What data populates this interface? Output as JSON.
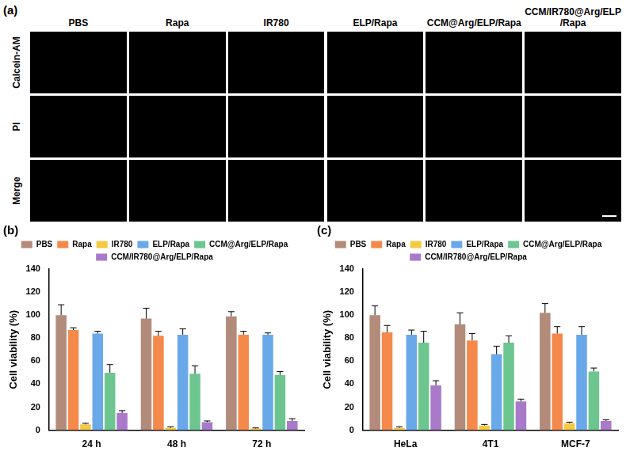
{
  "image_panel": {
    "label": "(a)",
    "columns": [
      "PBS",
      "Rapa",
      "IR780",
      "ELP/Rapa",
      "CCM@Arg/ELP/Rapa",
      "CCM/IR780@Arg/ELP/Rapa"
    ],
    "rows": [
      "Calcein-AM",
      "PI",
      "Merge"
    ]
  },
  "chart_data": [
    {
      "type": "bar",
      "panel": "(b)",
      "y_label": "Cell viability (%)",
      "categories": [
        "24 h",
        "48 h",
        "72 h"
      ],
      "ylim": [
        0,
        140
      ],
      "yticks": [
        0,
        20,
        40,
        60,
        80,
        100,
        120,
        140
      ],
      "grid": false,
      "legend": "top",
      "series": [
        {
          "name": "PBS",
          "color": "#b38b7b",
          "values": [
            100,
            97,
            99
          ],
          "errors": [
            9,
            9,
            4
          ]
        },
        {
          "name": "Rapa",
          "color": "#f5894c",
          "values": [
            87,
            82,
            83
          ],
          "errors": [
            2,
            4,
            3
          ]
        },
        {
          "name": "IR780",
          "color": "#f6c945",
          "values": [
            5,
            2,
            1.5
          ],
          "errors": [
            1,
            1,
            0.5
          ]
        },
        {
          "name": "ELP/Rapa",
          "color": "#6aa9e9",
          "values": [
            84,
            83,
            83
          ],
          "errors": [
            2,
            5,
            1.5
          ]
        },
        {
          "name": "CCM@Arg/ELP/Rapa",
          "color": "#6dc690",
          "values": [
            50,
            49,
            48
          ],
          "errors": [
            7,
            7,
            3
          ]
        },
        {
          "name": "CCM/IR780@Arg/ELP/Rapa",
          "color": "#a97ac9",
          "values": [
            15,
            7,
            8
          ],
          "errors": [
            2,
            1,
            2
          ]
        }
      ]
    },
    {
      "type": "bar",
      "panel": "(c)",
      "y_label": "Cell viability (%)",
      "categories": [
        "HeLa",
        "4T1",
        "MCF-7"
      ],
      "ylim": [
        0,
        140
      ],
      "yticks": [
        0,
        20,
        40,
        60,
        80,
        100,
        120,
        140
      ],
      "grid": false,
      "legend": "top",
      "series": [
        {
          "name": "PBS",
          "color": "#b38b7b",
          "values": [
            100,
            92,
            102
          ],
          "errors": [
            8,
            10,
            8
          ]
        },
        {
          "name": "Rapa",
          "color": "#f5894c",
          "values": [
            85,
            78,
            84
          ],
          "errors": [
            6,
            6,
            6
          ]
        },
        {
          "name": "IR780",
          "color": "#f6c945",
          "values": [
            2,
            4,
            6
          ],
          "errors": [
            1,
            1,
            1
          ]
        },
        {
          "name": "ELP/Rapa",
          "color": "#6aa9e9",
          "values": [
            83,
            66,
            83
          ],
          "errors": [
            4,
            7,
            7
          ]
        },
        {
          "name": "CCM@Arg/ELP/Rapa",
          "color": "#6dc690",
          "values": [
            76,
            76,
            51
          ],
          "errors": [
            10,
            6,
            3
          ]
        },
        {
          "name": "CCM/IR780@Arg/ELP/Rapa",
          "color": "#a97ac9",
          "values": [
            39,
            25,
            8
          ],
          "errors": [
            4,
            2,
            1
          ]
        }
      ]
    }
  ]
}
